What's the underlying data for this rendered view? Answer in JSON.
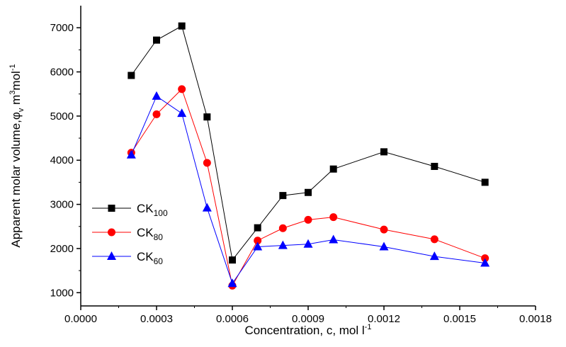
{
  "chart_data": {
    "type": "line",
    "xlabel": "Concentration, c, mol l⁻¹",
    "ylabel": "Apparent molar volume,φᵥ m³mol⁻¹",
    "xlabel_parts": [
      "Concentration, c, mol l",
      "-1"
    ],
    "ylabel_parts": [
      "Apparent molar volume,",
      "φ",
      "v",
      " m",
      "3",
      "mol",
      "-1"
    ],
    "xlim": [
      0.0,
      0.0018
    ],
    "ylim": [
      700,
      7500
    ],
    "x_ticks": [
      0.0,
      0.0003,
      0.0006,
      0.0009,
      0.0012,
      0.0015,
      0.0018
    ],
    "x_tick_labels": [
      "0.0000",
      "0.0003",
      "0.0006",
      "0.0009",
      "0.0012",
      "0.0015",
      "0.0018"
    ],
    "y_ticks": [
      1000,
      2000,
      3000,
      4000,
      5000,
      6000,
      7000
    ],
    "y_tick_labels": [
      "1000",
      "2000",
      "3000",
      "4000",
      "5000",
      "6000",
      "7000"
    ],
    "grid": false,
    "legend_position": "left-middle",
    "series": [
      {
        "name": "CK100",
        "name_base": "CK",
        "name_sub": "100",
        "marker": "square",
        "color": "#000000",
        "line_color": "#000000",
        "x": [
          0.0002,
          0.0003,
          0.0004,
          0.0005,
          0.0006,
          0.0007,
          0.0008,
          0.0009,
          0.001,
          0.0012,
          0.0014,
          0.0016
        ],
        "y": [
          5920,
          6720,
          7040,
          4980,
          1740,
          2470,
          3200,
          3270,
          3800,
          4190,
          3860,
          3500
        ]
      },
      {
        "name": "CK80",
        "name_base": "CK",
        "name_sub": "80",
        "marker": "circle",
        "color": "#ff0000",
        "line_color": "#ff0000",
        "x": [
          0.0002,
          0.0003,
          0.0004,
          0.0005,
          0.0006,
          0.0007,
          0.0008,
          0.0009,
          0.001,
          0.0012,
          0.0014,
          0.0016
        ],
        "y": [
          4170,
          5040,
          5610,
          3940,
          1160,
          2180,
          2460,
          2650,
          2710,
          2430,
          2210,
          1780
        ]
      },
      {
        "name": "CK60",
        "name_base": "CK",
        "name_sub": "60",
        "marker": "triangle",
        "color": "#0000ff",
        "line_color": "#0000ff",
        "x": [
          0.0002,
          0.0003,
          0.0004,
          0.0005,
          0.0006,
          0.0007,
          0.0008,
          0.0009,
          0.001,
          0.0012,
          0.0014,
          0.0016
        ],
        "y": [
          4120,
          5450,
          5060,
          2920,
          1210,
          2040,
          2070,
          2100,
          2200,
          2040,
          1820,
          1670
        ]
      }
    ]
  }
}
